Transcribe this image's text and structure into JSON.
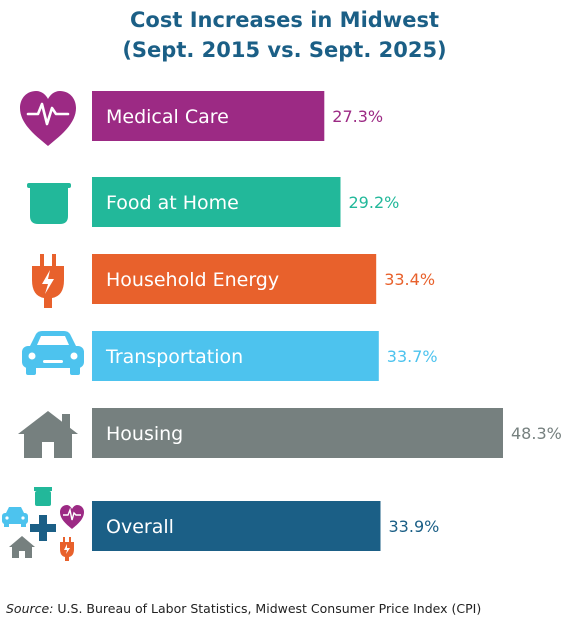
{
  "chart_data": {
    "type": "bar",
    "orientation": "horizontal",
    "title": "Cost Increases in Midwest",
    "subtitle": "(Sept. 2015 vs. Sept. 2025)",
    "unit": "%",
    "categories": [
      "Medical Care",
      "Food at Home",
      "Household Energy",
      "Transportation",
      "Housing",
      "Overall"
    ],
    "values": [
      27.3,
      29.2,
      33.4,
      33.7,
      48.3,
      33.9
    ],
    "value_labels": [
      "27.3%",
      "29.2%",
      "33.4%",
      "33.7%",
      "48.3%",
      "33.9%"
    ],
    "colors": [
      "#9c2a84",
      "#22b89a",
      "#e8612c",
      "#4dc3ee",
      "#76807f",
      "#1b5f86"
    ],
    "icons": [
      "heart-pulse-icon",
      "grocery-bag-icon",
      "plug-icon",
      "car-icon",
      "house-icon",
      "combined-icons"
    ],
    "xlim": [
      0,
      48.3
    ],
    "grid": false,
    "legend": "none"
  },
  "source": {
    "label": "Source:",
    "text": " U.S. Bureau of Labor Statistics, Midwest Consumer Price Index (CPI)"
  }
}
